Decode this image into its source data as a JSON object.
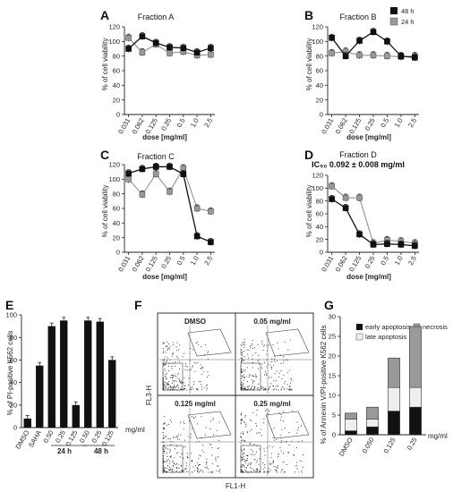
{
  "panels": {
    "A": {
      "letter": "A",
      "title": "Fraction A",
      "ylabel": "% of cell viability",
      "xlabel": "dose [mg/ml]"
    },
    "B": {
      "letter": "B",
      "title": "Fraction B",
      "ylabel": "% of cell viability",
      "xlabel": "dose [mg/ml]"
    },
    "C": {
      "letter": "C",
      "title": "Fraction C",
      "ylabel": "% of cell viability",
      "xlabel": "dose [mg/ml]"
    },
    "D": {
      "letter": "D",
      "title": "Fraction D",
      "subtitle": "IC₅₀ 0.092 ± 0.008 mg/ml",
      "ylabel": "% of cell viability",
      "xlabel": "dose [mg/ml]"
    },
    "E": {
      "letter": "E",
      "ylabel": "% of PI-positive K562 cells",
      "unit": "mg/ml",
      "group_24": "24 h",
      "group_48": "48 h"
    },
    "F": {
      "letter": "F",
      "xlabel": "FL1-H",
      "ylabel": "FL3-H",
      "quadrants": [
        "DMSO",
        "0.05 mg/ml",
        "0.125 mg/ml",
        "0.25 mg/ml"
      ]
    },
    "G": {
      "letter": "G",
      "ylabel": "% of Annexin V/PI-positive K562 cells",
      "unit": "mg/ml"
    }
  },
  "legend_top": {
    "items": [
      {
        "label": "48 h",
        "color": "#111111"
      },
      {
        "label": "24 h",
        "color": "#999999"
      }
    ]
  },
  "chart_data": [
    {
      "id": "A",
      "type": "line",
      "title": "Fraction A",
      "xlabel": "dose [mg/ml]",
      "ylabel": "% of cell viability",
      "categories": [
        "0.031",
        "0.062",
        "0.125",
        "0.25",
        "0.5",
        "1.0",
        "2.5"
      ],
      "ylim": [
        0,
        120
      ],
      "yticks": [
        0,
        20,
        40,
        60,
        80,
        100,
        120
      ],
      "series": [
        {
          "name": "48 h",
          "color": "#111111",
          "values": [
            90,
            107,
            98,
            92,
            91,
            85,
            91
          ]
        },
        {
          "name": "24 h",
          "color": "#999999",
          "values": [
            105,
            85,
            96,
            84,
            86,
            81,
            82
          ]
        }
      ]
    },
    {
      "id": "B",
      "type": "line",
      "title": "Fraction B",
      "xlabel": "dose [mg/ml]",
      "ylabel": "% of cell viability",
      "categories": [
        "0.031",
        "0.062",
        "0.125",
        "0.25",
        "0.5",
        "1.0",
        "2.5"
      ],
      "ylim": [
        0,
        120
      ],
      "yticks": [
        0,
        20,
        40,
        60,
        80,
        100,
        120
      ],
      "series": [
        {
          "name": "48 h",
          "color": "#111111",
          "values": [
            105,
            80,
            101,
            113,
            100,
            80,
            78
          ]
        },
        {
          "name": "24 h",
          "color": "#999999",
          "values": [
            84,
            86,
            81,
            81,
            80,
            79,
            80
          ]
        }
      ]
    },
    {
      "id": "C",
      "type": "line",
      "title": "Fraction C",
      "xlabel": "dose [mg/ml]",
      "ylabel": "% of cell viability",
      "categories": [
        "0.031",
        "0.062",
        "0.125",
        "0.25",
        "0.5",
        "1.0",
        "2.5"
      ],
      "ylim": [
        0,
        120
      ],
      "yticks": [
        0,
        20,
        40,
        60,
        80,
        100,
        120
      ],
      "series": [
        {
          "name": "48 h",
          "color": "#111111",
          "values": [
            108,
            114,
            117,
            117,
            107,
            22,
            14
          ]
        },
        {
          "name": "24 h",
          "color": "#999999",
          "values": [
            100,
            79,
            107,
            83,
            115,
            60,
            56
          ]
        }
      ]
    },
    {
      "id": "D",
      "type": "line",
      "title": "Fraction D",
      "subtitle": "IC₅₀ 0.092 ± 0.008 mg/ml",
      "xlabel": "dose [mg/ml]",
      "ylabel": "% of cell viability",
      "categories": [
        "0.031",
        "0.062",
        "0.125",
        "0.25",
        "0.5",
        "1.0",
        "2.5"
      ],
      "ylim": [
        0,
        120
      ],
      "yticks": [
        0,
        20,
        40,
        60,
        80,
        100,
        120
      ],
      "series": [
        {
          "name": "48 h",
          "color": "#111111",
          "values": [
            83,
            69,
            28,
            12,
            13,
            12,
            10
          ]
        },
        {
          "name": "24 h",
          "color": "#999999",
          "values": [
            103,
            85,
            85,
            14,
            19,
            17,
            14
          ]
        }
      ]
    },
    {
      "id": "E",
      "type": "bar",
      "ylabel": "% of PI-positive K562 cells",
      "categories": [
        "DMSO",
        "SAHA",
        "0.50",
        "0.25",
        "0.125",
        "0.50",
        "0.25",
        "0.125"
      ],
      "groups": [
        {
          "label": "24 h",
          "from": 2,
          "to": 4
        },
        {
          "label": "48 h",
          "from": 5,
          "to": 7
        }
      ],
      "values": [
        8,
        55,
        90,
        95,
        20,
        95,
        94,
        60
      ],
      "ylim": [
        0,
        100
      ],
      "yticks": [
        0,
        20,
        40,
        60,
        80,
        100
      ]
    },
    {
      "id": "G",
      "type": "bar",
      "stacked": true,
      "ylabel": "% of Annexin V/PI-positive K562 cells",
      "categories": [
        "DMSO",
        "0.050",
        "0.125",
        "0.25"
      ],
      "ylim": [
        0,
        30
      ],
      "yticks": [
        0,
        5,
        10,
        15,
        20,
        25,
        30
      ],
      "series": [
        {
          "name": "early apoptosis",
          "color": "#111111",
          "values": [
            1,
            2,
            6,
            7
          ]
        },
        {
          "name": "late apoptosis",
          "color": "#eeeeee",
          "values": [
            3,
            2,
            6,
            5
          ]
        },
        {
          "name": "necrosis",
          "color": "#999999",
          "values": [
            1.5,
            3,
            7.5,
            15.5
          ]
        }
      ]
    }
  ]
}
